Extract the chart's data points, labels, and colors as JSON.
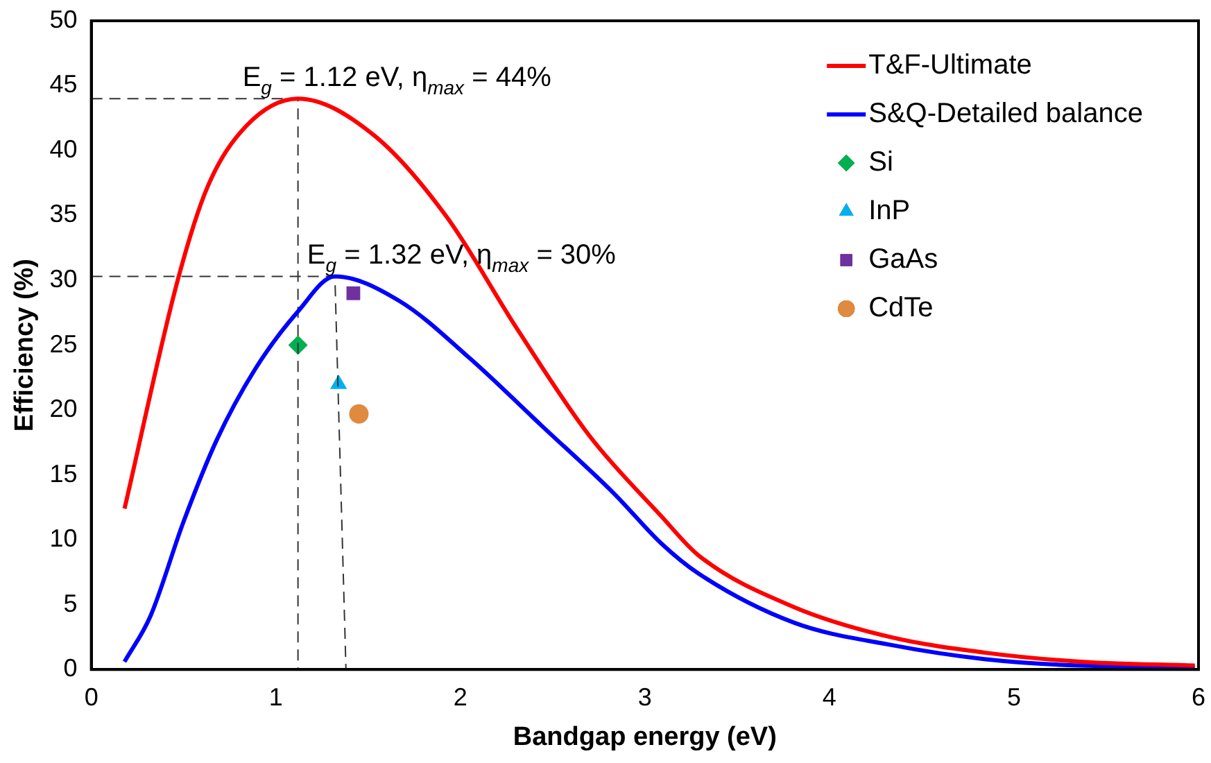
{
  "chart_data": {
    "type": "line",
    "xlabel": "Bandgap energy (eV)",
    "ylabel": "Efficiency (%)",
    "xlim": [
      0,
      6
    ],
    "xticks": [
      0,
      1,
      2,
      3,
      4,
      5,
      6
    ],
    "ylim": [
      0,
      50
    ],
    "yticks": [
      0,
      5,
      10,
      15,
      20,
      25,
      30,
      35,
      40,
      45,
      50
    ],
    "grid": false,
    "legend": "top right",
    "line_style": "solid",
    "series": [
      {
        "name": "T&F-Ultimate",
        "type": "line",
        "color": "#ff0000",
        "marker": "none",
        "x": [
          0.18,
          0.47,
          0.63,
          0.84,
          1.12,
          1.53,
          1.92,
          2.31,
          2.7,
          3.09,
          3.29,
          3.81,
          4.33,
          4.84,
          5.36,
          5.98
        ],
        "values": [
          12.4,
          30.1,
          37.2,
          41.9,
          44,
          41.2,
          35,
          26.2,
          18,
          11.8,
          8.8,
          4.8,
          2.5,
          1.3,
          0.6,
          0.3
        ]
      },
      {
        "name": "S&Q-Detailed balance",
        "type": "line",
        "color": "#0000ff",
        "marker": "none",
        "x": [
          0.18,
          0.32,
          0.5,
          0.68,
          0.89,
          1.12,
          1.32,
          1.67,
          2.05,
          2.44,
          2.83,
          3.09,
          3.29,
          3.81,
          4.33,
          4.84,
          5.36,
          5.98
        ],
        "values": [
          0.6,
          4.1,
          11.4,
          17.7,
          23.2,
          27.6,
          30.3,
          28.4,
          24,
          18.8,
          13.6,
          9.7,
          7.4,
          3.6,
          1.9,
          0.8,
          0.3,
          0.2
        ]
      },
      {
        "type": "line",
        "color": "#333333",
        "marker": "none",
        "line_style": "dashed",
        "x": [
          0,
          1.12,
          1.12
        ],
        "values": [
          44,
          44,
          0
        ]
      },
      {
        "type": "line",
        "color": "#333333",
        "marker": "none",
        "line_style": "dashed",
        "x": [
          0,
          1.32,
          1.38
        ],
        "values": [
          30.3,
          30.3,
          0
        ]
      },
      {
        "name": "Si",
        "type": "scatter",
        "color": "#00b050",
        "marker": "diamond",
        "x": [
          1.12
        ],
        "values": [
          25
        ]
      },
      {
        "name": "InP",
        "type": "scatter",
        "color": "#00b0f0",
        "marker": "triangle",
        "x": [
          1.34
        ],
        "values": [
          22
        ]
      },
      {
        "name": "GaAs",
        "type": "scatter",
        "color": "#7030a0",
        "marker": "square",
        "x": [
          1.42
        ],
        "values": [
          29
        ]
      },
      {
        "name": "CdTe",
        "type": "scatter",
        "color": "#e08a40",
        "marker": "circle",
        "x": [
          1.45
        ],
        "values": [
          19.7
        ]
      }
    ],
    "annotations": [
      {
        "text": "E$_{g}$ = 1.12 eV, η$_{max}$ = 44%",
        "x": 1.12,
        "y": 44
      },
      {
        "text": "E$_{g}$ = 1.32 eV, η$_{max}$ = 30%",
        "x": 1.32,
        "y": 30.3
      }
    ]
  }
}
